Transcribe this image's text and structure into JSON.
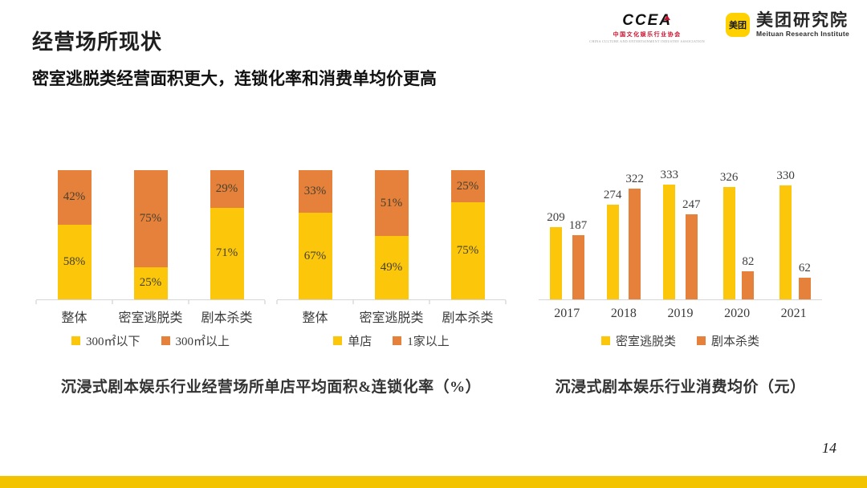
{
  "header": {
    "title": "经营场所现状",
    "subtitle": "密室逃脱类经营面积更大，连锁化率和消费单均价更高"
  },
  "logos": {
    "ccea": {
      "wordmark": "CCEA",
      "subtext_cn": "中国文化娱乐行业协会",
      "subtext_en": "CHINA CULTURE AND ENTERTAINMENT INDUSTRY ASSOCIATION"
    },
    "meituan": {
      "badge": "美团",
      "name_cn": "美团研究院",
      "name_en": "Meituan Research Institute",
      "badge_color": "#FFD100"
    }
  },
  "colors": {
    "yellow": "#FCC70A",
    "orange": "#E6813B",
    "footer_bar": "#F3C300"
  },
  "page_number": "14",
  "chart_data": [
    {
      "id": "chartA",
      "type": "bar",
      "subtype": "stacked-percent",
      "title": "沉浸式剧本娱乐行业经营场所单店平均面积&连锁化率（%）",
      "categories": [
        "整体",
        "密室逃脱类",
        "剧本杀类"
      ],
      "series": [
        {
          "name": "300㎡以下",
          "color": "#FCC70A",
          "values": [
            58,
            25,
            71
          ]
        },
        {
          "name": "300㎡以上",
          "color": "#E6813B",
          "values": [
            42,
            75,
            29
          ]
        }
      ],
      "value_suffix": "%",
      "ylim": [
        0,
        100
      ],
      "grid": false,
      "legend_position": "bottom"
    },
    {
      "id": "chartB",
      "type": "bar",
      "subtype": "stacked-percent",
      "title": "沉浸式剧本娱乐行业经营场所单店平均面积&连锁化率（%）",
      "categories": [
        "整体",
        "密室逃脱类",
        "剧本杀类"
      ],
      "series": [
        {
          "name": "单店",
          "color": "#FCC70A",
          "values": [
            67,
            49,
            75
          ]
        },
        {
          "name": "1家以上",
          "color": "#E6813B",
          "values": [
            33,
            51,
            25
          ]
        }
      ],
      "value_suffix": "%",
      "ylim": [
        0,
        100
      ],
      "grid": false,
      "legend_position": "bottom"
    },
    {
      "id": "chartC",
      "type": "bar",
      "subtype": "grouped",
      "title": "沉浸式剧本娱乐行业消费均价（元）",
      "categories": [
        "2017",
        "2018",
        "2019",
        "2020",
        "2021"
      ],
      "series": [
        {
          "name": "密室逃脱类",
          "color": "#FCC70A",
          "values": [
            209,
            274,
            333,
            326,
            330
          ]
        },
        {
          "name": "剧本杀类",
          "color": "#E6813B",
          "values": [
            187,
            322,
            247,
            82,
            62
          ]
        }
      ],
      "value_suffix": "",
      "ylim": [
        0,
        350
      ],
      "grid": false,
      "legend_position": "bottom"
    }
  ]
}
